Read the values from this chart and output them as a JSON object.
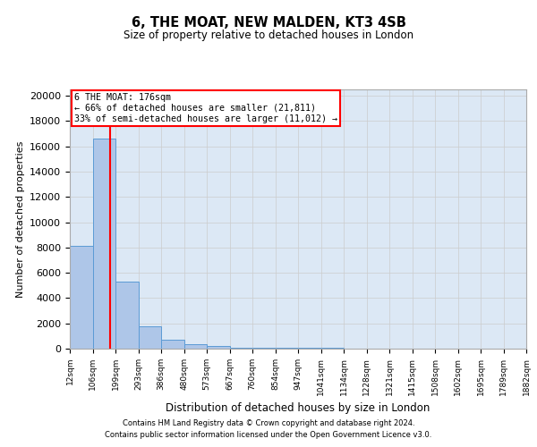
{
  "title": "6, THE MOAT, NEW MALDEN, KT3 4SB",
  "subtitle": "Size of property relative to detached houses in London",
  "xlabel": "Distribution of detached houses by size in London",
  "ylabel": "Number of detached properties",
  "bar_color": "#aec6e8",
  "bar_edge_color": "#5b9bd5",
  "bin_edges": [
    12,
    106,
    199,
    293,
    386,
    480,
    573,
    667,
    760,
    854,
    947,
    1041,
    1134,
    1228,
    1321,
    1415,
    1508,
    1602,
    1695,
    1789,
    1882
  ],
  "bar_heights": [
    8100,
    16600,
    5300,
    1800,
    700,
    350,
    200,
    100,
    80,
    60,
    50,
    40,
    30,
    20,
    15,
    10,
    8,
    5,
    3,
    2
  ],
  "red_line_x": 176,
  "annotation_text": "6 THE MOAT: 176sqm\n← 66% of detached houses are smaller (21,811)\n33% of semi-detached houses are larger (11,012) →",
  "ylim": [
    0,
    20500
  ],
  "yticks": [
    0,
    2000,
    4000,
    6000,
    8000,
    10000,
    12000,
    14000,
    16000,
    18000,
    20000
  ],
  "tick_labels": [
    "12sqm",
    "106sqm",
    "199sqm",
    "293sqm",
    "386sqm",
    "480sqm",
    "573sqm",
    "667sqm",
    "760sqm",
    "854sqm",
    "947sqm",
    "1041sqm",
    "1134sqm",
    "1228sqm",
    "1321sqm",
    "1415sqm",
    "1508sqm",
    "1602sqm",
    "1695sqm",
    "1789sqm",
    "1882sqm"
  ],
  "footer1": "Contains HM Land Registry data © Crown copyright and database right 2024.",
  "footer2": "Contains public sector information licensed under the Open Government Licence v3.0.",
  "background_color": "#ffffff",
  "grid_color": "#cccccc",
  "axes_bg_color": "#dce8f5"
}
